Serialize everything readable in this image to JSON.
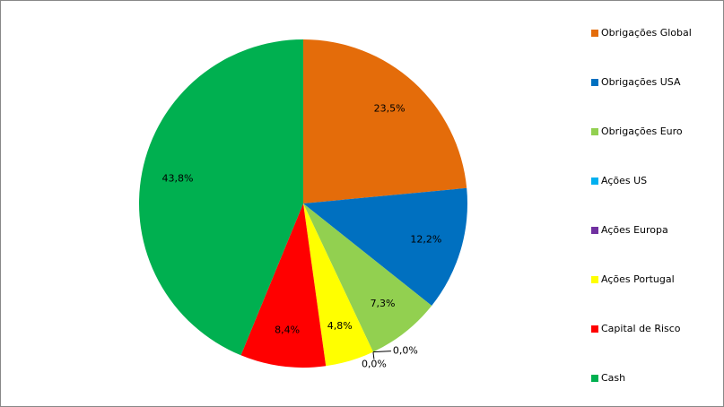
{
  "chart_data": {
    "type": "pie",
    "categories": [
      "Obrigações Global",
      "Obrigações USA",
      "Obrigações Euro",
      "Ações US",
      "Ações Europa",
      "Ações Portugal",
      "Capital de Risco",
      "Cash"
    ],
    "values": [
      23.5,
      12.2,
      7.3,
      0.0,
      0.0,
      4.8,
      8.4,
      43.8
    ],
    "value_labels": [
      "23,5%",
      "12,2%",
      "7,3%",
      "0,0%",
      "0,0%",
      "4,8%",
      "8,4%",
      "43,8%"
    ],
    "colors": [
      "#e46c0a",
      "#0070c0",
      "#92d050",
      "#00b0f0",
      "#7030a0",
      "#ffff00",
      "#ff0000",
      "#00b050"
    ],
    "legend": "right"
  }
}
